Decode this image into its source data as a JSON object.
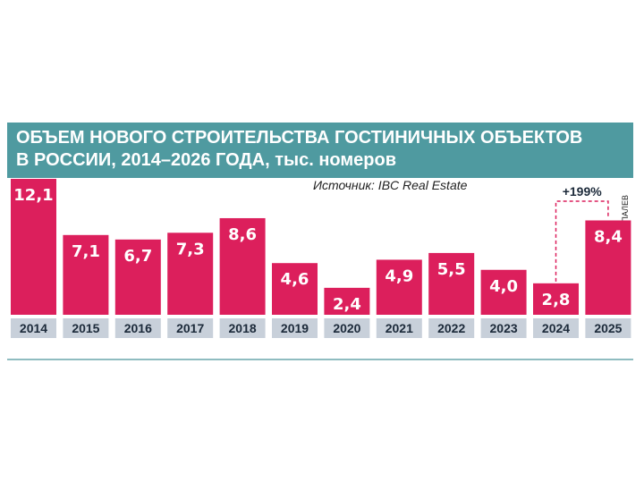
{
  "chart_data": {
    "type": "bar",
    "title": "ОБЪЕМ НОВОГО СТРОИТЕЛЬСТВА ГОСТИНИЧНЫХ ОБЪЕКТОВ В РОССИИ, 2014–2026 ГОДА, тыс. номеров",
    "title_lines": [
      "ОБЪЕМ НОВОГО СТРОИТЕЛЬСТВА ГОСТИНИЧНЫХ ОБЪЕКТОВ",
      "В РОССИИ, 2014–2026 ГОДА, тыс. номеров"
    ],
    "source": "Источник: IBC Real Estate",
    "credit": "ИВАН СКРИПАЛЕВ",
    "categories": [
      "2014",
      "2015",
      "2016",
      "2017",
      "2018",
      "2019",
      "2020",
      "2021",
      "2022",
      "2023",
      "2024",
      "2025"
    ],
    "values": [
      12.1,
      7.1,
      6.7,
      7.3,
      8.6,
      4.6,
      2.4,
      4.9,
      5.5,
      4.0,
      2.8,
      8.4
    ],
    "value_labels": [
      "12,1",
      "7,1",
      "6,7",
      "7,3",
      "8,6",
      "4,6",
      "2,4",
      "4,9",
      "5,5",
      "4,0",
      "2,8",
      "8,4"
    ],
    "ylim": [
      0,
      12.1
    ],
    "grid": false,
    "annotation": {
      "text": "+199%",
      "from": "2024",
      "to": "2025"
    },
    "colors": {
      "bar": "#dc1f5c",
      "title_banner": "#4f9aa0",
      "year_strip": "#c8d0da",
      "annotation": "#dc1f5c"
    }
  }
}
